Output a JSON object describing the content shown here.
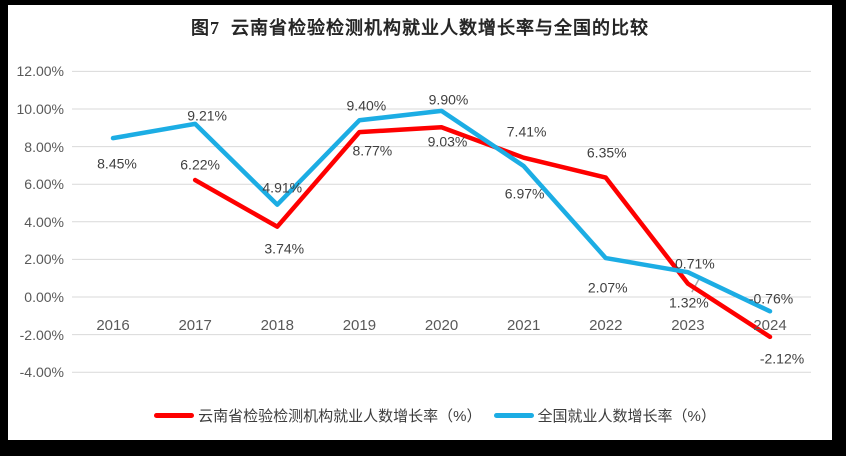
{
  "frame": {
    "background": "#000000",
    "panel_background": "#FFFFFF"
  },
  "chart_data": {
    "type": "line",
    "title": "图7  云南省检验检测机构就业人数增长率与全国的比较",
    "categories": [
      "2016",
      "2017",
      "2018",
      "2019",
      "2020",
      "2021",
      "2022",
      "2023",
      "2024"
    ],
    "series": [
      {
        "name": "云南省检验检测机构就业人数增长率（%）",
        "color": "#FE0000",
        "values": [
          null,
          6.22,
          3.74,
          8.77,
          9.03,
          7.41,
          6.35,
          0.71,
          -2.12
        ],
        "point_labels": [
          null,
          "6.22%",
          "3.74%",
          "8.77%",
          "9.03%",
          "7.41%",
          "6.35%",
          "0.71%",
          "-2.12%"
        ],
        "label_offsets": [
          null,
          [
            5,
            -15
          ],
          [
            7,
            22
          ],
          [
            13,
            19
          ],
          [
            6,
            15
          ],
          [
            3,
            -26
          ],
          [
            1,
            -25
          ],
          [
            7,
            -20
          ],
          [
            12,
            22
          ]
        ]
      },
      {
        "name": "全国就业人数增长率（%）",
        "color": "#1CADE4",
        "values": [
          8.45,
          9.21,
          4.91,
          9.4,
          9.9,
          6.97,
          2.07,
          1.32,
          -0.76
        ],
        "point_labels": [
          "8.45%",
          "9.21%",
          "4.91%",
          "9.40%",
          "9.90%",
          "6.97%",
          "2.07%",
          "1.32%",
          "-0.76%"
        ],
        "label_offsets": [
          [
            4,
            26
          ],
          [
            12,
            -8
          ],
          [
            5,
            -17
          ],
          [
            7,
            -14
          ],
          [
            7,
            -11
          ],
          [
            1,
            28
          ],
          [
            2,
            30
          ],
          [
            1,
            31
          ],
          [
            1,
            -12
          ]
        ]
      }
    ],
    "y_axis": {
      "tick_labels": [
        "12.00%",
        "10.00%",
        "8.00%",
        "6.00%",
        "4.00%",
        "2.00%",
        "0.00%",
        "-2.00%",
        "-4.00%"
      ],
      "max": 12,
      "min": -4,
      "step": 2
    },
    "grid": true,
    "legend_position": "bottom",
    "annotations": {
      "leader_line": {
        "series_index": 1,
        "point_index": 7
      }
    },
    "colors": {
      "gridline": "#D9D9D9",
      "axis_text": "#595959",
      "label_text": "#404040",
      "title_text": "#262626",
      "leader": "#A6A6A6"
    }
  }
}
